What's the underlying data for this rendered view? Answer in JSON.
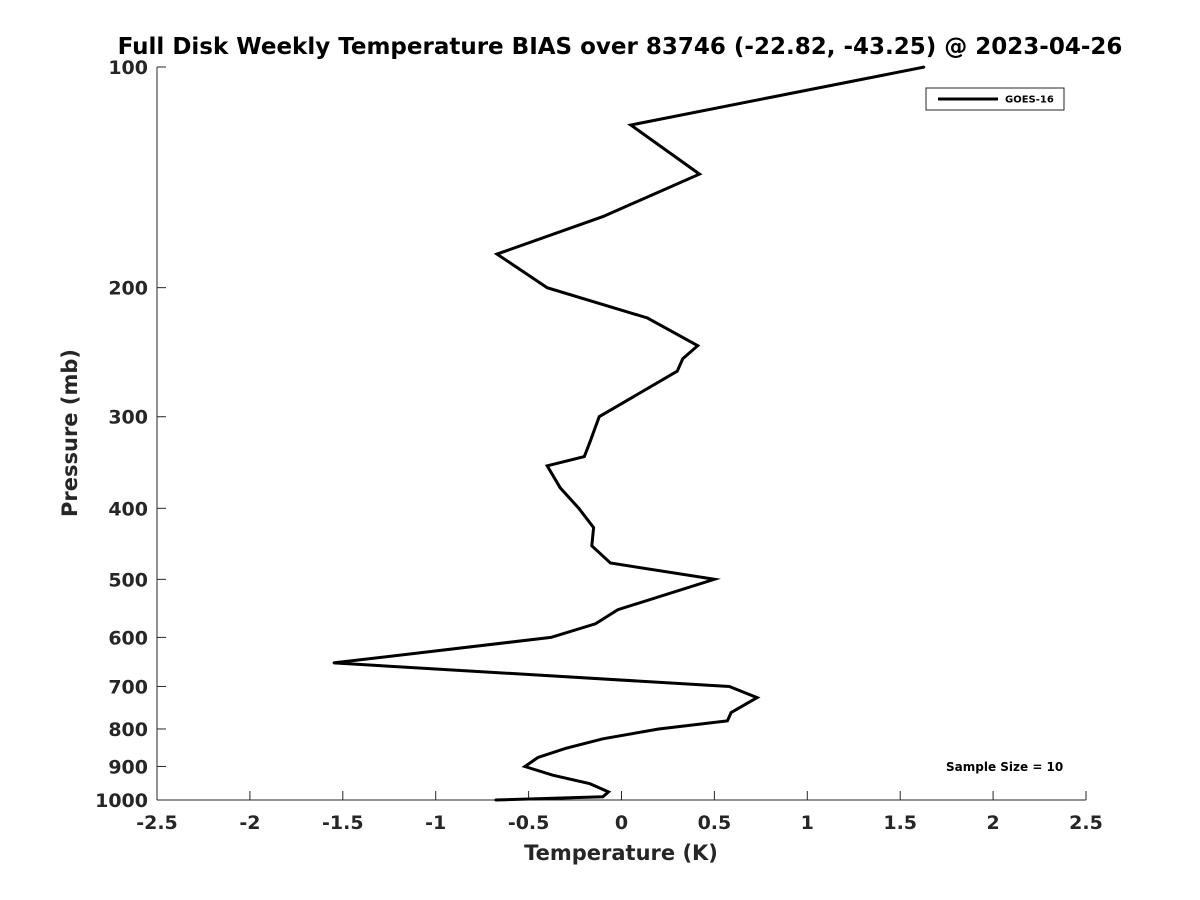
{
  "chart_data": {
    "type": "line",
    "title": "Full Disk Weekly Temperature BIAS over 83746 (-22.82, -43.25) @ 2023-04-26",
    "xlabel": "Temperature (K)",
    "ylabel": "Pressure (mb)",
    "xlim": [
      -2.5,
      2.5
    ],
    "ylim": [
      100,
      1000
    ],
    "y_scale": "log",
    "y_reversed": true,
    "x_ticks": [
      "-2.5",
      "-2",
      "-1.5",
      "-1",
      "-0.5",
      "0",
      "0.5",
      "1",
      "1.5",
      "2",
      "2.5"
    ],
    "y_ticks": [
      "100",
      "200",
      "300",
      "400",
      "500",
      "600",
      "700",
      "800",
      "900",
      "1000"
    ],
    "grid": false,
    "legend_position": "top-right",
    "annotation": "Sample Size = 10",
    "series": [
      {
        "name": "GOES-16",
        "color": "#000000",
        "points": [
          {
            "p": 100,
            "t": 1.63
          },
          {
            "p": 120,
            "t": 0.05
          },
          {
            "p": 140,
            "t": 0.42
          },
          {
            "p": 160,
            "t": -0.1
          },
          {
            "p": 180,
            "t": -0.67
          },
          {
            "p": 200,
            "t": -0.4
          },
          {
            "p": 220,
            "t": 0.14
          },
          {
            "p": 240,
            "t": 0.41
          },
          {
            "p": 250,
            "t": 0.33
          },
          {
            "p": 260,
            "t": 0.3
          },
          {
            "p": 300,
            "t": -0.12
          },
          {
            "p": 325,
            "t": -0.17
          },
          {
            "p": 340,
            "t": -0.2
          },
          {
            "p": 350,
            "t": -0.4
          },
          {
            "p": 375,
            "t": -0.33
          },
          {
            "p": 400,
            "t": -0.23
          },
          {
            "p": 425,
            "t": -0.15
          },
          {
            "p": 450,
            "t": -0.16
          },
          {
            "p": 475,
            "t": -0.06
          },
          {
            "p": 500,
            "t": 0.5
          },
          {
            "p": 550,
            "t": -0.02
          },
          {
            "p": 575,
            "t": -0.14
          },
          {
            "p": 600,
            "t": -0.38
          },
          {
            "p": 650,
            "t": -1.55
          },
          {
            "p": 700,
            "t": 0.58
          },
          {
            "p": 725,
            "t": 0.73
          },
          {
            "p": 760,
            "t": 0.59
          },
          {
            "p": 780,
            "t": 0.57
          },
          {
            "p": 800,
            "t": 0.2
          },
          {
            "p": 825,
            "t": -0.1
          },
          {
            "p": 850,
            "t": -0.3
          },
          {
            "p": 875,
            "t": -0.45
          },
          {
            "p": 900,
            "t": -0.52
          },
          {
            "p": 925,
            "t": -0.37
          },
          {
            "p": 950,
            "t": -0.17
          },
          {
            "p": 975,
            "t": -0.07
          },
          {
            "p": 990,
            "t": -0.1
          },
          {
            "p": 1000,
            "t": -0.68
          }
        ]
      }
    ]
  }
}
